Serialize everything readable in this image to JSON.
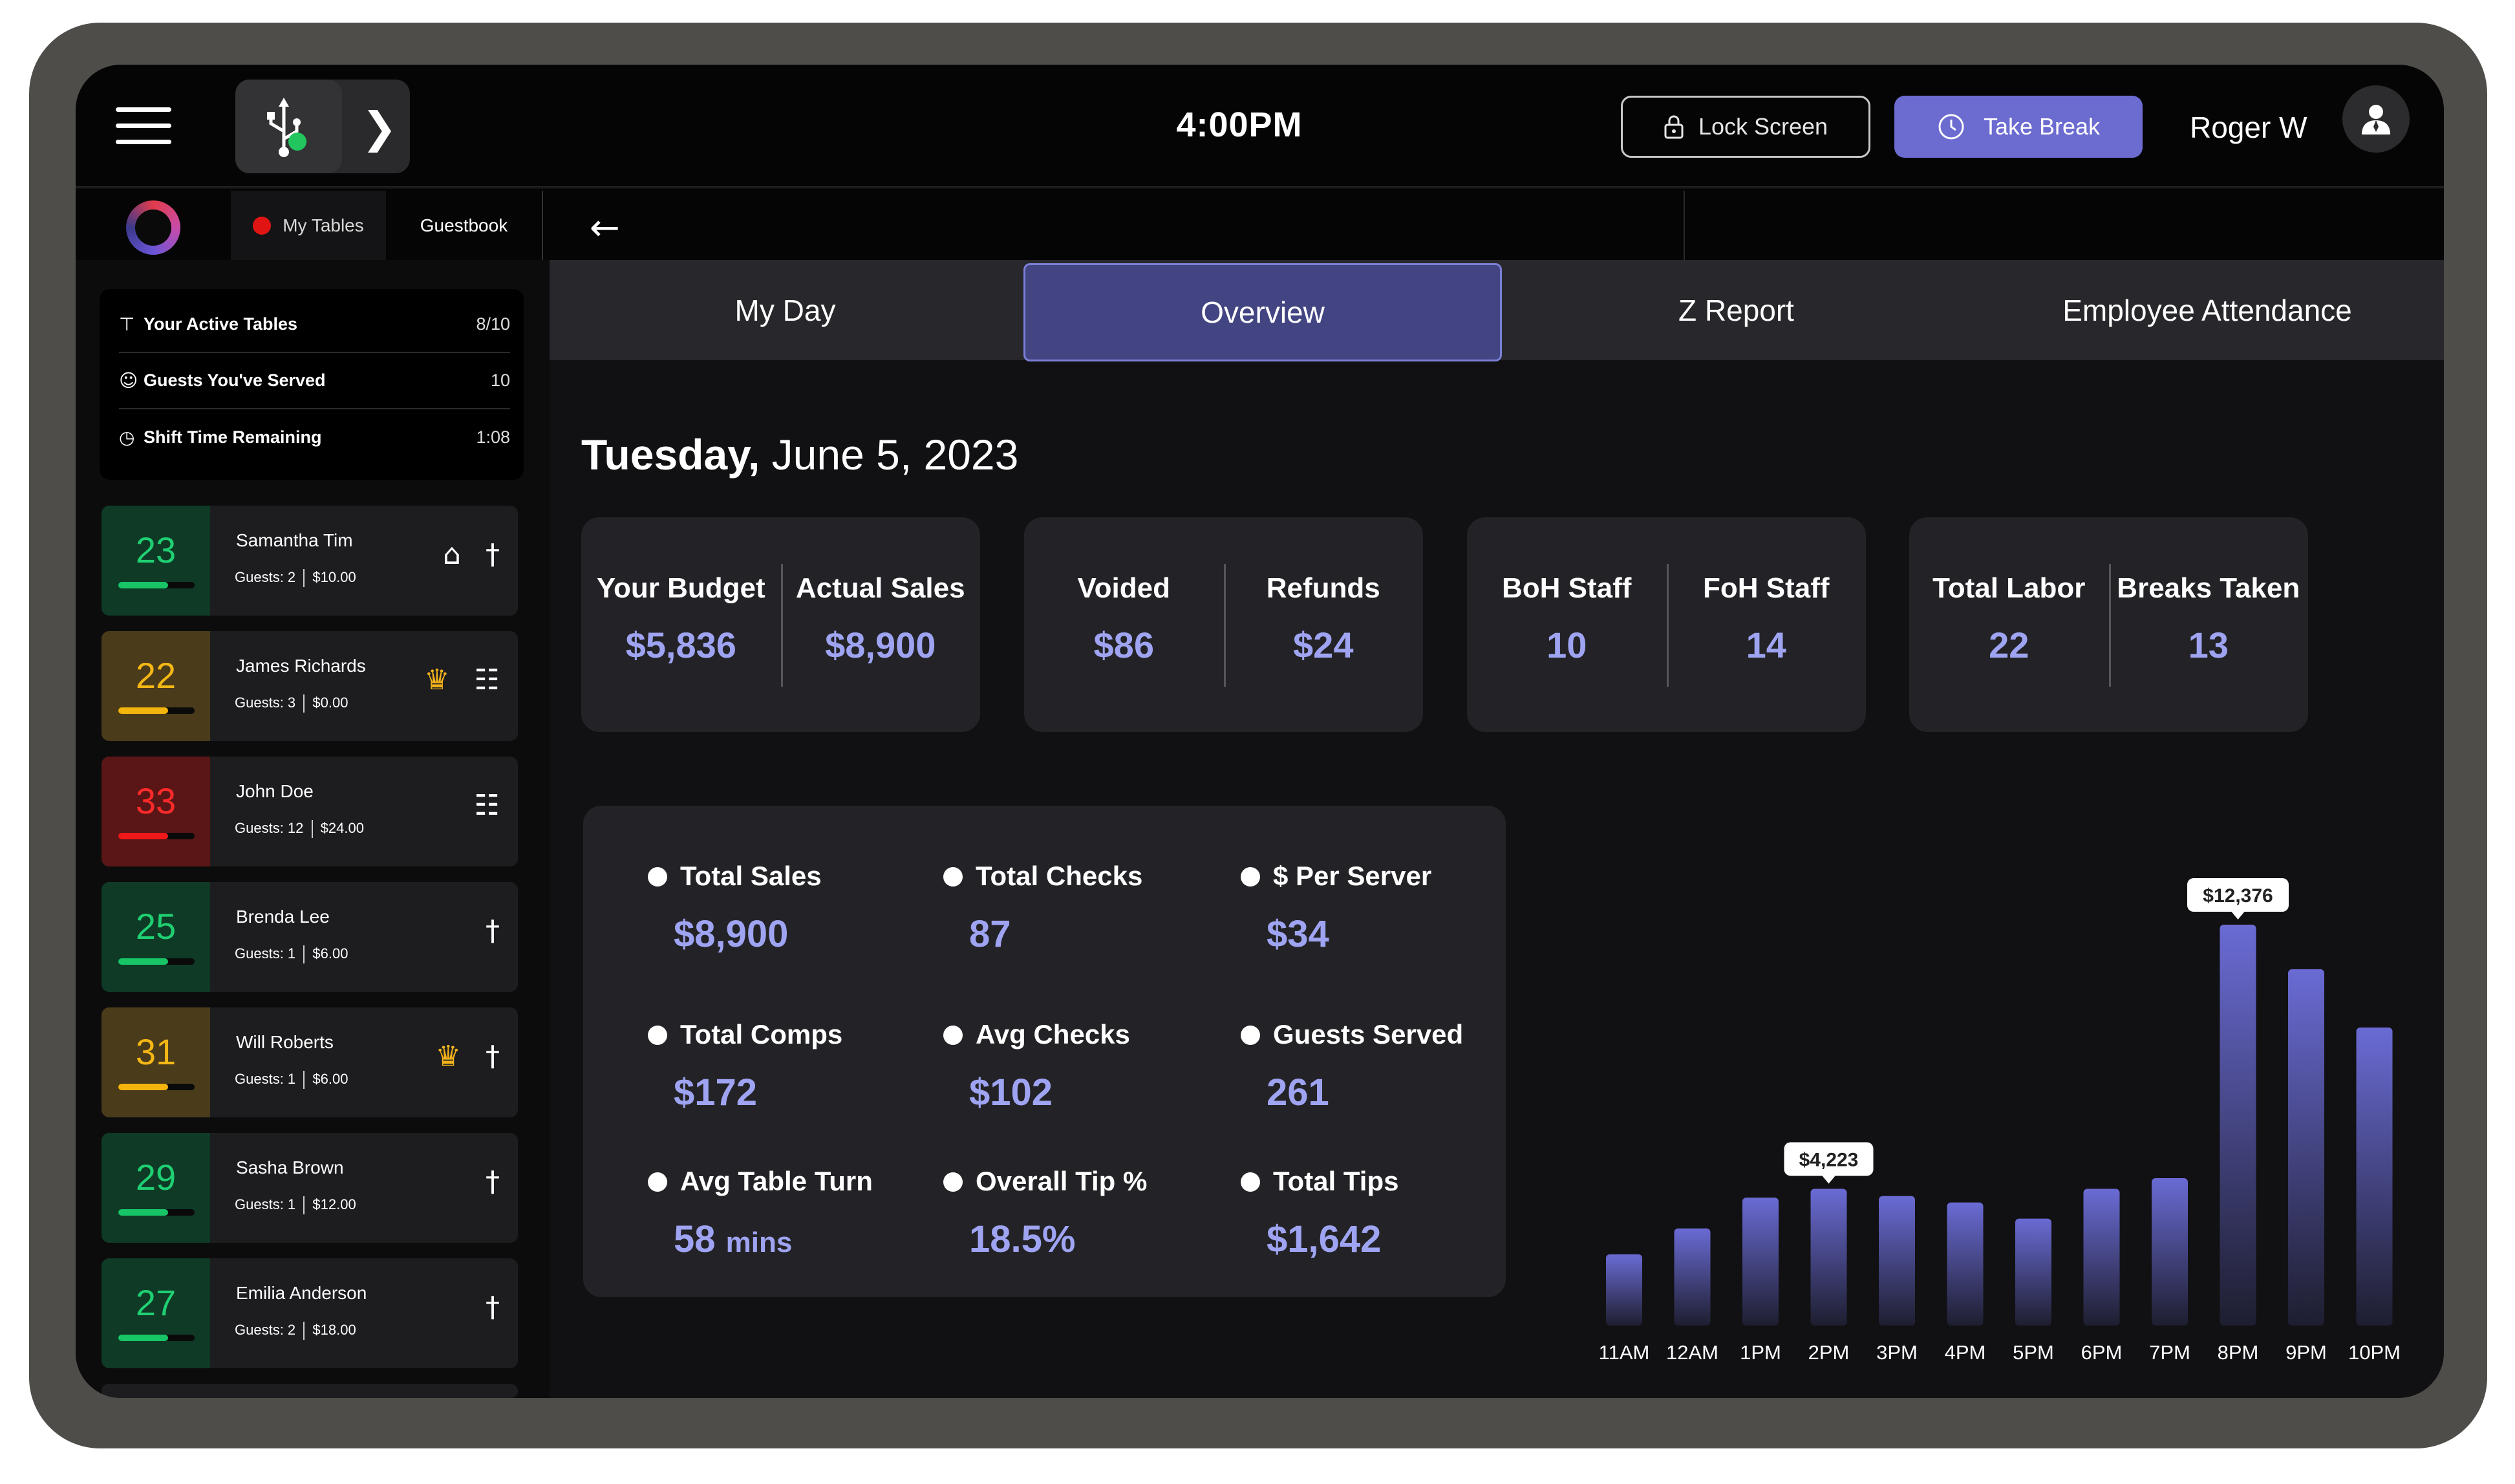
{
  "topbar": {
    "clock": "4:00PM",
    "lock_label": "Lock Screen",
    "break_label": "Take Break",
    "user_name": "Roger W"
  },
  "subbar": {
    "my_tables_label": "My Tables",
    "guestbook_label": "Guestbook"
  },
  "sidebar": {
    "stats": [
      {
        "icon": "table-icon",
        "label": "Your Active Tables",
        "value": "8/10"
      },
      {
        "icon": "guests-icon",
        "label": "Guests You've Served",
        "value": "10"
      },
      {
        "icon": "clock-icon",
        "label": "Shift Time Remaining",
        "value": "1:08"
      }
    ],
    "tables": [
      {
        "number": "23",
        "name": "Samantha Tim",
        "guests": "Guests: 2",
        "amount": "$10.00",
        "status": "green",
        "progress": 0.65,
        "icons": [
          "cake-icon",
          "utensils-icon"
        ]
      },
      {
        "number": "22",
        "name": "James Richards",
        "guests": "Guests: 3",
        "amount": "$0.00",
        "status": "yellow",
        "progress": 0.65,
        "icons": [
          "crown-icon",
          "receipt-icon"
        ]
      },
      {
        "number": "33",
        "name": "John Doe",
        "guests": "Guests: 12",
        "amount": "$24.00",
        "status": "red",
        "progress": 0.65,
        "icons": [
          "receipt-icon"
        ]
      },
      {
        "number": "25",
        "name": "Brenda Lee",
        "guests": "Guests: 1",
        "amount": "$6.00",
        "status": "green",
        "progress": 0.65,
        "icons": [
          "utensils-icon"
        ]
      },
      {
        "number": "31",
        "name": "Will Roberts",
        "guests": "Guests: 1",
        "amount": "$6.00",
        "status": "yellow",
        "progress": 0.65,
        "icons": [
          "crown-icon",
          "utensils-icon"
        ]
      },
      {
        "number": "29",
        "name": "Sasha Brown",
        "guests": "Guests: 1",
        "amount": "$12.00",
        "status": "green",
        "progress": 0.65,
        "icons": [
          "utensils-icon"
        ]
      },
      {
        "number": "27",
        "name": "Emilia Anderson",
        "guests": "Guests: 2",
        "amount": "$18.00",
        "status": "green",
        "progress": 0.65,
        "icons": [
          "utensils-icon"
        ]
      }
    ]
  },
  "tabs": [
    {
      "label": "My Day",
      "active": false
    },
    {
      "label": "Overview",
      "active": true
    },
    {
      "label": "Z Report",
      "active": false
    },
    {
      "label": "Employee Attendance",
      "active": false
    }
  ],
  "date": {
    "weekday": "Tuesday,",
    "rest": "June 5, 2023"
  },
  "kpis": [
    {
      "left_label": "Your Budget",
      "left_value": "$5,836",
      "right_label": "Actual Sales",
      "right_value": "$8,900"
    },
    {
      "left_label": "Voided",
      "left_value": "$86",
      "right_label": "Refunds",
      "right_value": "$24"
    },
    {
      "left_label": "BoH Staff",
      "left_value": "10",
      "right_label": "FoH Staff",
      "right_value": "14"
    },
    {
      "left_label": "Total Labor",
      "left_value": "22",
      "right_label": "Breaks Taken",
      "right_value": "13"
    }
  ],
  "metrics": [
    {
      "label": "Total Sales",
      "value": "$8,900",
      "unit": ""
    },
    {
      "label": "Total Checks",
      "value": "87",
      "unit": ""
    },
    {
      "label": "$ Per Server",
      "value": "$34",
      "unit": ""
    },
    {
      "label": "Total Comps",
      "value": "$172",
      "unit": ""
    },
    {
      "label": "Avg Checks",
      "value": "$102",
      "unit": ""
    },
    {
      "label": "Guests Served",
      "value": "261",
      "unit": ""
    },
    {
      "label": "Avg Table Turn",
      "value": "58",
      "unit": "mins"
    },
    {
      "label": "Overall Tip %",
      "value": "18.5%",
      "unit": ""
    },
    {
      "label": "Total Tips",
      "value": "$1,642",
      "unit": ""
    }
  ],
  "colors": {
    "accent": "#6c6bd0",
    "value_text": "#9fa4f2",
    "bar_top": "#6a6bd4",
    "bar_bottom": "#1e1e30"
  },
  "chart_data": {
    "type": "bar",
    "categories": [
      "11AM",
      "12AM",
      "1PM",
      "2PM",
      "3PM",
      "4PM",
      "5PM",
      "6PM",
      "7PM",
      "8PM",
      "9PM",
      "10PM"
    ],
    "values": [
      2200,
      3000,
      3950,
      4223,
      4000,
      3800,
      3300,
      4223,
      4550,
      12376,
      11000,
      9200
    ],
    "value_labels": [
      {
        "index": 3,
        "text": "$4,223"
      },
      {
        "index": 9,
        "text": "$12,376"
      }
    ],
    "scale_note": "bar heights are relative; only two values labeled",
    "grid": false
  }
}
